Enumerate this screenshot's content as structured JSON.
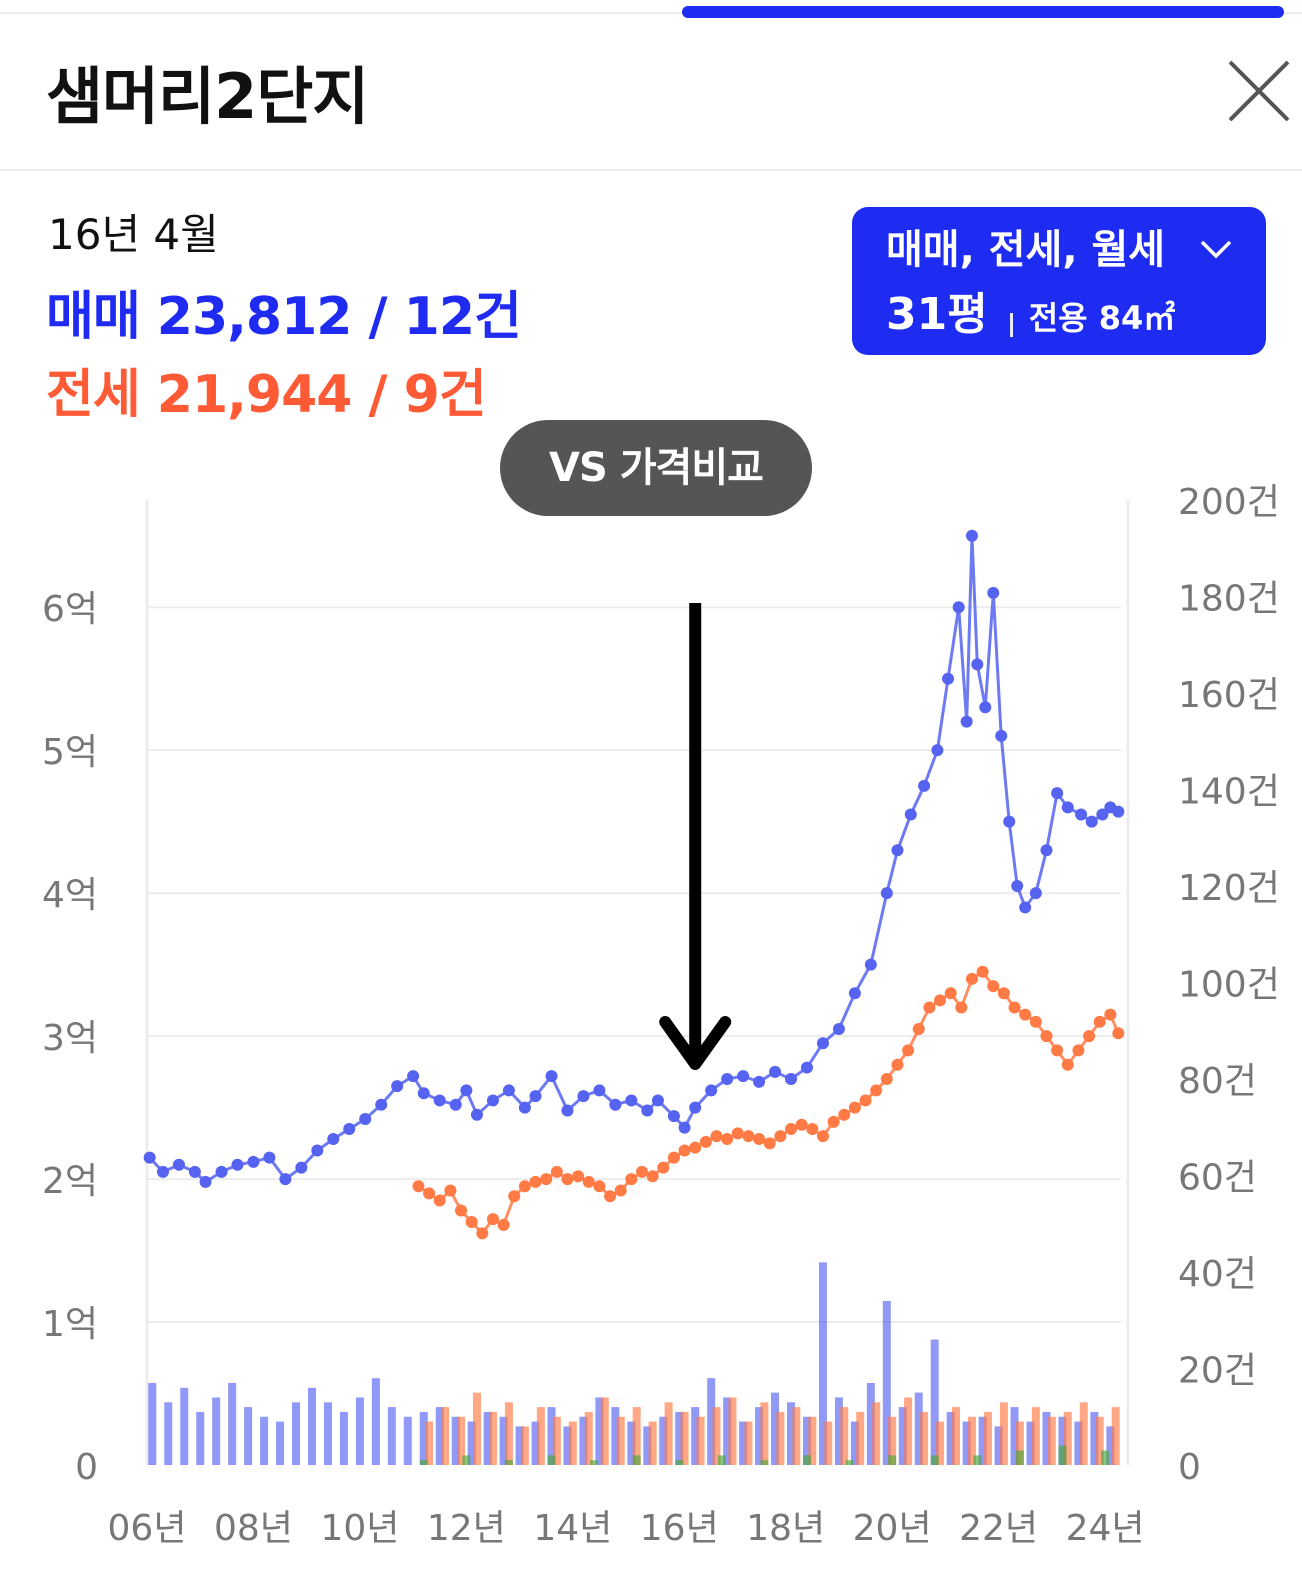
{
  "header": {
    "title": "샘머리2단지"
  },
  "summary": {
    "date": "16년 4월",
    "sale": "매매 23,812 / 12건",
    "jeonse": "전세 21,944 / 9건"
  },
  "filter": {
    "types": "매매, 전세, 월세",
    "pyeong": "31평",
    "area": "전용 84㎡"
  },
  "vs_button": "VS 가격비교",
  "colors": {
    "accent": "#1e2bf0",
    "sale": "#5563f0",
    "jeonse": "#ff7a45",
    "monthly": "#4aa83a",
    "vs_bg": "#555555"
  },
  "chart_data": {
    "type": "line",
    "x_ticks": [
      "06년",
      "08년",
      "10년",
      "12년",
      "14년",
      "16년",
      "18년",
      "20년",
      "22년",
      "24년"
    ],
    "y_left_ticks": [
      "0",
      "1억",
      "2억",
      "3억",
      "4억",
      "5억",
      "6억"
    ],
    "y_left_range": [
      0,
      6.75
    ],
    "y_right_ticks": [
      "0",
      "20건",
      "40건",
      "60건",
      "80건",
      "100건",
      "120건",
      "140건",
      "160건",
      "180건",
      "200건"
    ],
    "y_right_range": [
      0,
      200
    ],
    "x_range": [
      2006.0,
      2024.3
    ],
    "grid": true,
    "annotation": {
      "label": "16년 4월",
      "x": 2016.3,
      "type": "down-arrow"
    },
    "series": [
      {
        "kind": "line",
        "x": [
          2006.05,
          2006.3,
          2006.6,
          2006.9,
          2007.1,
          2007.4,
          2007.7,
          2008.0,
          2008.3,
          2008.6,
          2008.9,
          2009.2,
          2009.5,
          2009.8,
          2010.1,
          2010.4,
          2010.7,
          2011.0,
          2011.2,
          2011.5,
          2011.8,
          2012.0,
          2012.2,
          2012.5,
          2012.8,
          2013.1,
          2013.3,
          2013.6,
          2013.9,
          2014.2,
          2014.5,
          2014.8,
          2015.1,
          2015.4,
          2015.6,
          2015.9,
          2016.1,
          2016.3,
          2016.6,
          2016.9,
          2017.2,
          2017.5,
          2017.8,
          2018.1,
          2018.4,
          2018.7,
          2019.0,
          2019.3,
          2019.6,
          2019.9,
          2020.1,
          2020.35,
          2020.6,
          2020.85,
          2021.05,
          2021.25,
          2021.4,
          2021.5,
          2021.6,
          2021.75,
          2021.9,
          2022.05,
          2022.2,
          2022.35,
          2022.5,
          2022.7,
          2022.9,
          2023.1,
          2023.3,
          2023.55,
          2023.75,
          2023.95,
          2024.1,
          2024.25
        ],
        "values": [
          2.15,
          2.05,
          2.1,
          2.05,
          1.98,
          2.05,
          2.1,
          2.12,
          2.15,
          2.0,
          2.08,
          2.2,
          2.28,
          2.35,
          2.42,
          2.52,
          2.65,
          2.72,
          2.6,
          2.55,
          2.52,
          2.62,
          2.45,
          2.55,
          2.62,
          2.5,
          2.58,
          2.72,
          2.48,
          2.58,
          2.62,
          2.52,
          2.55,
          2.48,
          2.55,
          2.44,
          2.36,
          2.5,
          2.62,
          2.7,
          2.72,
          2.68,
          2.75,
          2.7,
          2.78,
          2.95,
          3.05,
          3.3,
          3.5,
          4.0,
          4.3,
          4.55,
          4.75,
          5.0,
          5.5,
          6.0,
          5.2,
          6.5,
          5.6,
          5.3,
          6.1,
          5.1,
          4.5,
          4.05,
          3.9,
          4.0,
          4.3,
          4.7,
          4.6,
          4.55,
          4.5,
          4.55,
          4.6,
          4.57
        ],
        "color": "#5563f0"
      },
      {
        "kind": "line",
        "x": [
          2011.1,
          2011.3,
          2011.5,
          2011.7,
          2011.9,
          2012.1,
          2012.3,
          2012.5,
          2012.7,
          2012.9,
          2013.1,
          2013.3,
          2013.5,
          2013.7,
          2013.9,
          2014.1,
          2014.3,
          2014.5,
          2014.7,
          2014.9,
          2015.1,
          2015.3,
          2015.5,
          2015.7,
          2015.9,
          2016.1,
          2016.3,
          2016.5,
          2016.7,
          2016.9,
          2017.1,
          2017.3,
          2017.5,
          2017.7,
          2017.9,
          2018.1,
          2018.3,
          2018.5,
          2018.7,
          2018.9,
          2019.1,
          2019.3,
          2019.5,
          2019.7,
          2019.9,
          2020.1,
          2020.3,
          2020.5,
          2020.7,
          2020.9,
          2021.1,
          2021.3,
          2021.5,
          2021.7,
          2021.9,
          2022.1,
          2022.3,
          2022.5,
          2022.7,
          2022.9,
          2023.1,
          2023.3,
          2023.5,
          2023.7,
          2023.9,
          2024.1,
          2024.25
        ],
        "values": [
          1.95,
          1.9,
          1.85,
          1.92,
          1.78,
          1.7,
          1.62,
          1.72,
          1.68,
          1.88,
          1.95,
          1.98,
          2.0,
          2.05,
          2.0,
          2.02,
          1.98,
          1.95,
          1.88,
          1.92,
          2.0,
          2.05,
          2.02,
          2.08,
          2.15,
          2.2,
          2.22,
          2.26,
          2.3,
          2.28,
          2.32,
          2.3,
          2.28,
          2.25,
          2.3,
          2.35,
          2.38,
          2.35,
          2.3,
          2.4,
          2.45,
          2.5,
          2.55,
          2.62,
          2.7,
          2.8,
          2.9,
          3.05,
          3.2,
          3.25,
          3.3,
          3.2,
          3.4,
          3.45,
          3.35,
          3.3,
          3.2,
          3.15,
          3.1,
          3.0,
          2.9,
          2.8,
          2.9,
          3.0,
          3.1,
          3.15,
          3.02
        ],
        "color": "#ff7a45"
      },
      {
        "kind": "bar",
        "x": [
          2006.1,
          2006.4,
          2006.7,
          2007.0,
          2007.3,
          2007.6,
          2007.9,
          2008.2,
          2008.5,
          2008.8,
          2009.1,
          2009.4,
          2009.7,
          2010.0,
          2010.3,
          2010.6,
          2010.9,
          2011.2,
          2011.5,
          2011.8,
          2012.1,
          2012.4,
          2012.7,
          2013.0,
          2013.3,
          2013.6,
          2013.9,
          2014.2,
          2014.5,
          2014.8,
          2015.1,
          2015.4,
          2015.7,
          2016.0,
          2016.3,
          2016.6,
          2016.9,
          2017.2,
          2017.5,
          2017.8,
          2018.1,
          2018.4,
          2018.7,
          2019.0,
          2019.3,
          2019.6,
          2019.9,
          2020.2,
          2020.5,
          2020.8,
          2021.1,
          2021.4,
          2021.7,
          2022.0,
          2022.3,
          2022.6,
          2022.9,
          2023.2,
          2023.5,
          2023.8,
          2024.1
        ],
        "values": [
          17,
          13,
          16,
          11,
          14,
          17,
          12,
          10,
          9,
          13,
          16,
          13,
          11,
          14,
          18,
          12,
          10,
          11,
          12,
          10,
          9,
          11,
          10,
          8,
          9,
          12,
          8,
          10,
          14,
          12,
          9,
          8,
          10,
          11,
          12,
          18,
          14,
          9,
          12,
          15,
          13,
          10,
          42,
          14,
          9,
          17,
          34,
          12,
          15,
          26,
          11,
          9,
          10,
          8,
          12,
          9,
          11,
          10,
          9,
          11,
          8
        ],
        "color": "#5563f0"
      },
      {
        "kind": "bar",
        "x": [
          2011.3,
          2011.6,
          2011.9,
          2012.2,
          2012.5,
          2012.8,
          2013.1,
          2013.4,
          2013.7,
          2014.0,
          2014.3,
          2014.6,
          2014.9,
          2015.2,
          2015.5,
          2015.8,
          2016.1,
          2016.4,
          2016.7,
          2017.0,
          2017.3,
          2017.6,
          2017.9,
          2018.2,
          2018.5,
          2018.8,
          2019.1,
          2019.4,
          2019.7,
          2020.0,
          2020.3,
          2020.6,
          2020.9,
          2021.2,
          2021.5,
          2021.8,
          2022.1,
          2022.4,
          2022.7,
          2023.0,
          2023.3,
          2023.6,
          2023.9,
          2024.2
        ],
        "values": [
          9,
          12,
          10,
          15,
          11,
          13,
          8,
          12,
          10,
          9,
          11,
          14,
          10,
          12,
          9,
          13,
          11,
          10,
          12,
          14,
          9,
          13,
          11,
          12,
          10,
          9,
          12,
          11,
          13,
          10,
          14,
          11,
          9,
          12,
          10,
          11,
          13,
          9,
          12,
          10,
          11,
          13,
          10,
          12
        ],
        "color": "#ff7a45"
      },
      {
        "kind": "bar",
        "x": [
          2011.2,
          2012.0,
          2012.8,
          2013.6,
          2014.4,
          2015.2,
          2016.0,
          2016.8,
          2017.6,
          2018.4,
          2019.2,
          2020.0,
          2020.8,
          2021.6,
          2022.4,
          2023.2,
          2024.0
        ],
        "values": [
          1,
          2,
          1,
          2,
          1,
          2,
          1,
          2,
          1,
          2,
          1,
          2,
          2,
          2,
          3,
          4,
          3
        ],
        "color": "#4aa83a"
      }
    ]
  }
}
